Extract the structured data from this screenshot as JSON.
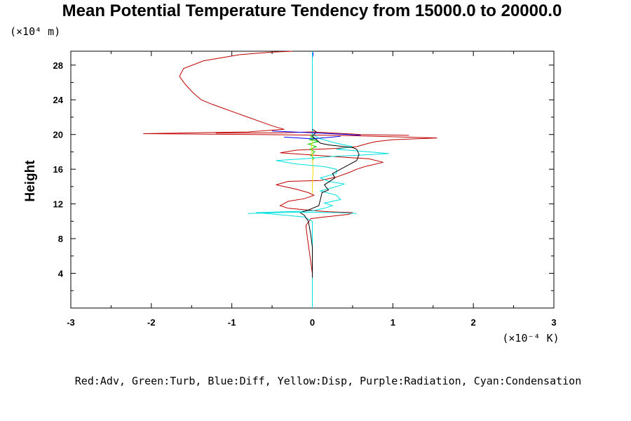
{
  "chart_data": {
    "type": "line",
    "title": "Mean Potential Temperature Tendency from 15000.0 to 20000.0",
    "ylabel": "Height",
    "y_scale_label": "(×10⁴ m)",
    "x_scale_label": "(×10⁻⁴ K)",
    "legend_text": "Red:Adv, Green:Turb, Blue:Diff, Yellow:Disp, Purple:Radiation, Cyan:Condensation",
    "xlim": [
      -3,
      3
    ],
    "ylim": [
      0,
      29.6
    ],
    "x_ticks": [
      "-3",
      "-2",
      "-1",
      "0",
      "1",
      "2",
      "3"
    ],
    "x_tick_values": [
      -3,
      -2,
      -1,
      0,
      1,
      2,
      3
    ],
    "y_ticks": [
      "4",
      "8",
      "12",
      "16",
      "20",
      "24",
      "28"
    ],
    "y_tick_values": [
      4,
      8,
      12,
      16,
      20,
      24,
      28
    ],
    "series": [
      {
        "color": "#c00000",
        "points": [
          [
            0,
            4
          ],
          [
            -0.03,
            6
          ],
          [
            -0.06,
            8
          ],
          [
            -0.08,
            9.5
          ],
          [
            -0.02,
            10.3
          ],
          [
            0.15,
            10.5
          ],
          [
            0.45,
            10.8
          ],
          [
            0.5,
            11
          ],
          [
            0.2,
            11.1
          ],
          [
            0.05,
            11.2
          ],
          [
            -0.3,
            11.5
          ],
          [
            -0.4,
            11.8
          ],
          [
            -0.3,
            12.3
          ],
          [
            -0.1,
            12.6
          ],
          [
            0.02,
            13
          ],
          [
            -0.05,
            13.3
          ],
          [
            -0.2,
            13.7
          ],
          [
            -0.45,
            14.2
          ],
          [
            -0.3,
            14.6
          ],
          [
            0.1,
            14.7
          ],
          [
            0.3,
            15.1
          ],
          [
            0.45,
            15.6
          ],
          [
            0.55,
            16
          ],
          [
            0.65,
            16.3
          ],
          [
            0.88,
            16.8
          ],
          [
            0.7,
            17.2
          ],
          [
            0.2,
            17.5
          ],
          [
            -0.1,
            17.7
          ],
          [
            -0.4,
            17.9
          ],
          [
            -0.2,
            18.2
          ],
          [
            0.3,
            18.4
          ],
          [
            0.55,
            18.6
          ],
          [
            0.7,
            19
          ],
          [
            0.8,
            19.2
          ],
          [
            1.0,
            19.4
          ],
          [
            1.55,
            19.6
          ],
          [
            0.8,
            19.8
          ],
          [
            0.3,
            19.9
          ],
          [
            -0.7,
            20
          ],
          [
            -2.1,
            20.1
          ],
          [
            -0.8,
            20.3
          ],
          [
            -0.35,
            20.6
          ],
          [
            -0.5,
            21
          ],
          [
            -0.65,
            21.5
          ],
          [
            -0.8,
            22
          ],
          [
            -0.95,
            22.5
          ],
          [
            -1.1,
            23
          ],
          [
            -1.25,
            23.5
          ],
          [
            -1.38,
            24
          ],
          [
            -1.48,
            24.8
          ],
          [
            -1.58,
            25.8
          ],
          [
            -1.65,
            26.7
          ],
          [
            -1.6,
            27.6
          ],
          [
            -1.35,
            28.5
          ],
          [
            -0.9,
            29.2
          ],
          [
            -0.5,
            29.5
          ],
          [
            -0.25,
            29.6
          ]
        ]
      },
      {
        "color": "#00d000",
        "points": [
          [
            0,
            17
          ],
          [
            0.02,
            17.3
          ],
          [
            -0.02,
            17.6
          ],
          [
            0.03,
            18
          ],
          [
            -0.03,
            18.3
          ],
          [
            0.05,
            18.6
          ],
          [
            -0.05,
            18.9
          ],
          [
            0.08,
            19.2
          ],
          [
            -0.04,
            19.4
          ],
          [
            0.06,
            19.5
          ],
          [
            -0.02,
            19.7
          ],
          [
            0,
            20
          ]
        ]
      },
      {
        "color": "#0000ff",
        "points": [
          [
            0,
            28.2
          ],
          [
            0,
            28.8
          ],
          [
            0.01,
            29.3
          ],
          [
            0,
            29.6
          ]
        ]
      },
      {
        "color": "#ffd700",
        "points": [
          [
            0,
            13.2
          ],
          [
            0,
            14.5
          ],
          [
            0.01,
            16
          ],
          [
            0,
            17.5
          ],
          [
            -0.01,
            18.5
          ],
          [
            0,
            19.3
          ]
        ]
      },
      {
        "color": "#800080",
        "points": []
      },
      {
        "color": "#00e0e0",
        "points": [
          [
            0,
            0
          ],
          [
            0,
            8
          ],
          [
            0,
            10
          ],
          [
            -0.1,
            10.5
          ],
          [
            -0.7,
            11
          ],
          [
            0,
            11.2
          ],
          [
            0.15,
            11.5
          ],
          [
            0.25,
            11.8
          ],
          [
            0.15,
            12.1
          ],
          [
            0.35,
            12.5
          ],
          [
            0.3,
            13
          ],
          [
            0.1,
            13.5
          ],
          [
            0.3,
            14
          ],
          [
            0.4,
            14.3
          ],
          [
            0.2,
            14.6
          ],
          [
            0.1,
            15
          ],
          [
            0.3,
            15.5
          ],
          [
            0.3,
            16
          ],
          [
            0.15,
            16.3
          ],
          [
            -0.2,
            16.6
          ],
          [
            -0.45,
            17
          ],
          [
            -0.1,
            17.2
          ],
          [
            0.3,
            17.5
          ],
          [
            0.55,
            17.6
          ],
          [
            0.95,
            17.8
          ],
          [
            0.7,
            18
          ],
          [
            0.3,
            18.3
          ],
          [
            0.5,
            18.6
          ],
          [
            0.3,
            19
          ],
          [
            0.1,
            19.5
          ],
          [
            0,
            20
          ],
          [
            0,
            22
          ],
          [
            0,
            25
          ],
          [
            0,
            29.6
          ]
        ]
      },
      {
        "color": "#000000",
        "points": [
          [
            0,
            3.5
          ],
          [
            0,
            7
          ],
          [
            -0.02,
            8.5
          ],
          [
            -0.05,
            10
          ],
          [
            -0.1,
            10.7
          ],
          [
            -0.15,
            11
          ],
          [
            -0.05,
            11.3
          ],
          [
            0.08,
            11.8
          ],
          [
            0.1,
            12.5
          ],
          [
            0.12,
            13.3
          ],
          [
            0.2,
            13.6
          ],
          [
            0.15,
            14.2
          ],
          [
            0.28,
            15
          ],
          [
            0.25,
            15.5
          ],
          [
            0.35,
            16
          ],
          [
            0.55,
            17
          ],
          [
            0.58,
            17.7
          ],
          [
            0.55,
            18.3
          ],
          [
            0.5,
            18.5
          ],
          [
            0.2,
            18.8
          ],
          [
            0.1,
            19
          ],
          [
            0,
            19.8
          ],
          [
            0.05,
            20.3
          ],
          [
            0,
            20.6
          ]
        ]
      }
    ],
    "spikes": [
      {
        "color": "#c00000",
        "points": [
          [
            -1.2,
            20.15
          ],
          [
            -0.4,
            20.2
          ],
          [
            0,
            20.3
          ],
          [
            0.6,
            20.0
          ],
          [
            1.2,
            19.9
          ]
        ]
      },
      {
        "color": "#0000ff",
        "points": [
          [
            -0.5,
            20.4
          ],
          [
            0,
            20.2
          ],
          [
            0.45,
            20.0
          ],
          [
            0.6,
            19.9
          ]
        ]
      },
      {
        "color": "#0000ff",
        "points": [
          [
            -0.35,
            19.7
          ],
          [
            0,
            19.5
          ],
          [
            0.35,
            19.8
          ]
        ]
      },
      {
        "color": "#00e0e0",
        "points": [
          [
            -0.8,
            10.9
          ],
          [
            -0.2,
            11.05
          ],
          [
            0.3,
            11.0
          ],
          [
            0.55,
            10.9
          ]
        ]
      }
    ]
  }
}
